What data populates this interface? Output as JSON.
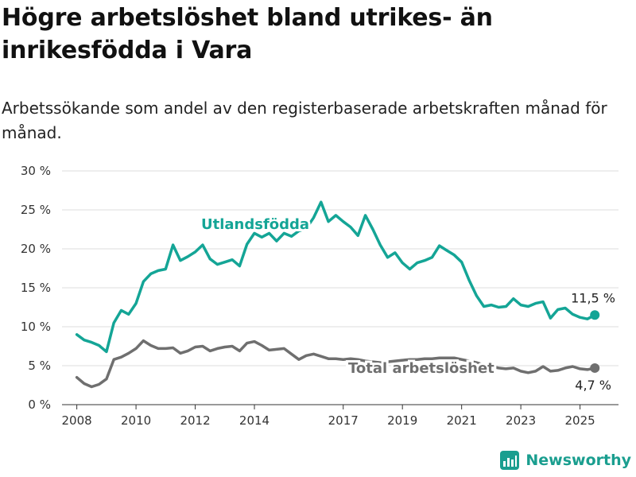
{
  "title": "Högre arbetslöshet bland utrikes- än inrikesfödda i Vara",
  "subtitle": "Arbetssökande som andel av den registerbaserade arbetskraften månad för månad.",
  "brand": "Newsworthy",
  "colors": {
    "foreign": "#14a596",
    "total": "#6f6f6f",
    "grid": "#dddddd",
    "brand": "#1a9e8f"
  },
  "chart_data": {
    "type": "line",
    "title": "",
    "xlabel": "",
    "ylabel": "",
    "ylim": [
      0,
      30
    ],
    "y_ticks": [
      "0 %",
      "5 %",
      "10 %",
      "15 %",
      "20 %",
      "25 %",
      "30 %"
    ],
    "x_ticks": [
      "2008",
      "2010",
      "2012",
      "2014",
      "2017",
      "2019",
      "2021",
      "2023",
      "2025"
    ],
    "grid": true,
    "legend": "direct labels",
    "series": [
      {
        "name": "Utlandsfödda",
        "color": "#14a596",
        "end_label": "11,5 %",
        "points": [
          [
            "2008-01",
            9.0
          ],
          [
            "2008-04",
            8.3
          ],
          [
            "2008-07",
            8.0
          ],
          [
            "2008-10",
            7.6
          ],
          [
            "2009-01",
            6.8
          ],
          [
            "2009-04",
            10.5
          ],
          [
            "2009-07",
            12.1
          ],
          [
            "2009-10",
            11.6
          ],
          [
            "2010-01",
            13.0
          ],
          [
            "2010-04",
            15.8
          ],
          [
            "2010-07",
            16.8
          ],
          [
            "2010-10",
            17.2
          ],
          [
            "2011-01",
            17.4
          ],
          [
            "2011-04",
            20.5
          ],
          [
            "2011-07",
            18.5
          ],
          [
            "2011-10",
            19.0
          ],
          [
            "2012-01",
            19.6
          ],
          [
            "2012-04",
            20.5
          ],
          [
            "2012-07",
            18.7
          ],
          [
            "2012-10",
            18.0
          ],
          [
            "2013-01",
            18.3
          ],
          [
            "2013-04",
            18.6
          ],
          [
            "2013-07",
            17.8
          ],
          [
            "2013-10",
            20.6
          ],
          [
            "2014-01",
            22.0
          ],
          [
            "2014-04",
            21.5
          ],
          [
            "2014-07",
            22.0
          ],
          [
            "2014-10",
            21.0
          ],
          [
            "2015-01",
            22.0
          ],
          [
            "2015-04",
            21.6
          ],
          [
            "2015-07",
            22.3
          ],
          [
            "2015-10",
            22.6
          ],
          [
            "2016-01",
            24.0
          ],
          [
            "2016-04",
            26.0
          ],
          [
            "2016-07",
            23.5
          ],
          [
            "2016-10",
            24.3
          ],
          [
            "2017-01",
            23.5
          ],
          [
            "2017-04",
            22.8
          ],
          [
            "2017-07",
            21.7
          ],
          [
            "2017-10",
            24.3
          ],
          [
            "2018-01",
            22.5
          ],
          [
            "2018-04",
            20.5
          ],
          [
            "2018-07",
            18.9
          ],
          [
            "2018-10",
            19.5
          ],
          [
            "2019-01",
            18.2
          ],
          [
            "2019-04",
            17.4
          ],
          [
            "2019-07",
            18.2
          ],
          [
            "2019-10",
            18.5
          ],
          [
            "2020-01",
            18.9
          ],
          [
            "2020-04",
            20.4
          ],
          [
            "2020-07",
            19.8
          ],
          [
            "2020-10",
            19.2
          ],
          [
            "2021-01",
            18.3
          ],
          [
            "2021-04",
            16.0
          ],
          [
            "2021-07",
            14.0
          ],
          [
            "2021-10",
            12.6
          ],
          [
            "2022-01",
            12.8
          ],
          [
            "2022-04",
            12.5
          ],
          [
            "2022-07",
            12.6
          ],
          [
            "2022-10",
            13.6
          ],
          [
            "2023-01",
            12.8
          ],
          [
            "2023-04",
            12.6
          ],
          [
            "2023-07",
            13.0
          ],
          [
            "2023-10",
            13.2
          ],
          [
            "2024-01",
            11.1
          ],
          [
            "2024-04",
            12.2
          ],
          [
            "2024-07",
            12.4
          ],
          [
            "2024-10",
            11.6
          ],
          [
            "2025-01",
            11.2
          ],
          [
            "2025-04",
            11.0
          ],
          [
            "2025-07",
            11.5
          ]
        ]
      },
      {
        "name": "Total arbetslöshet",
        "color": "#6f6f6f",
        "end_label": "4,7 %",
        "points": [
          [
            "2008-01",
            3.5
          ],
          [
            "2008-04",
            2.7
          ],
          [
            "2008-07",
            2.3
          ],
          [
            "2008-10",
            2.6
          ],
          [
            "2009-01",
            3.3
          ],
          [
            "2009-04",
            5.8
          ],
          [
            "2009-07",
            6.1
          ],
          [
            "2009-10",
            6.6
          ],
          [
            "2010-01",
            7.2
          ],
          [
            "2010-04",
            8.2
          ],
          [
            "2010-07",
            7.6
          ],
          [
            "2010-10",
            7.2
          ],
          [
            "2011-01",
            7.2
          ],
          [
            "2011-04",
            7.3
          ],
          [
            "2011-07",
            6.6
          ],
          [
            "2011-10",
            6.9
          ],
          [
            "2012-01",
            7.4
          ],
          [
            "2012-04",
            7.5
          ],
          [
            "2012-07",
            6.9
          ],
          [
            "2012-10",
            7.2
          ],
          [
            "2013-01",
            7.4
          ],
          [
            "2013-04",
            7.5
          ],
          [
            "2013-07",
            6.9
          ],
          [
            "2013-10",
            7.9
          ],
          [
            "2014-01",
            8.1
          ],
          [
            "2014-04",
            7.6
          ],
          [
            "2014-07",
            7.0
          ],
          [
            "2014-10",
            7.1
          ],
          [
            "2015-01",
            7.2
          ],
          [
            "2015-04",
            6.5
          ],
          [
            "2015-07",
            5.8
          ],
          [
            "2015-10",
            6.3
          ],
          [
            "2016-01",
            6.5
          ],
          [
            "2016-04",
            6.2
          ],
          [
            "2016-07",
            5.9
          ],
          [
            "2016-10",
            5.9
          ],
          [
            "2017-01",
            5.8
          ],
          [
            "2017-04",
            5.9
          ],
          [
            "2017-07",
            5.8
          ],
          [
            "2017-10",
            5.6
          ],
          [
            "2018-01",
            5.5
          ],
          [
            "2018-04",
            5.4
          ],
          [
            "2018-07",
            5.5
          ],
          [
            "2018-10",
            5.6
          ],
          [
            "2019-01",
            5.7
          ],
          [
            "2019-04",
            5.8
          ],
          [
            "2019-07",
            5.8
          ],
          [
            "2019-10",
            5.9
          ],
          [
            "2020-01",
            5.9
          ],
          [
            "2020-04",
            6.0
          ],
          [
            "2020-07",
            6.0
          ],
          [
            "2020-10",
            6.0
          ],
          [
            "2021-01",
            5.8
          ],
          [
            "2021-04",
            5.6
          ],
          [
            "2021-07",
            5.4
          ],
          [
            "2021-10",
            5.1
          ],
          [
            "2022-01",
            4.9
          ],
          [
            "2022-04",
            4.7
          ],
          [
            "2022-07",
            4.6
          ],
          [
            "2022-10",
            4.7
          ],
          [
            "2023-01",
            4.3
          ],
          [
            "2023-04",
            4.1
          ],
          [
            "2023-07",
            4.3
          ],
          [
            "2023-10",
            4.9
          ],
          [
            "2024-01",
            4.3
          ],
          [
            "2024-04",
            4.4
          ],
          [
            "2024-07",
            4.7
          ],
          [
            "2024-10",
            4.9
          ],
          [
            "2025-01",
            4.6
          ],
          [
            "2025-04",
            4.5
          ],
          [
            "2025-07",
            4.7
          ]
        ]
      }
    ]
  }
}
